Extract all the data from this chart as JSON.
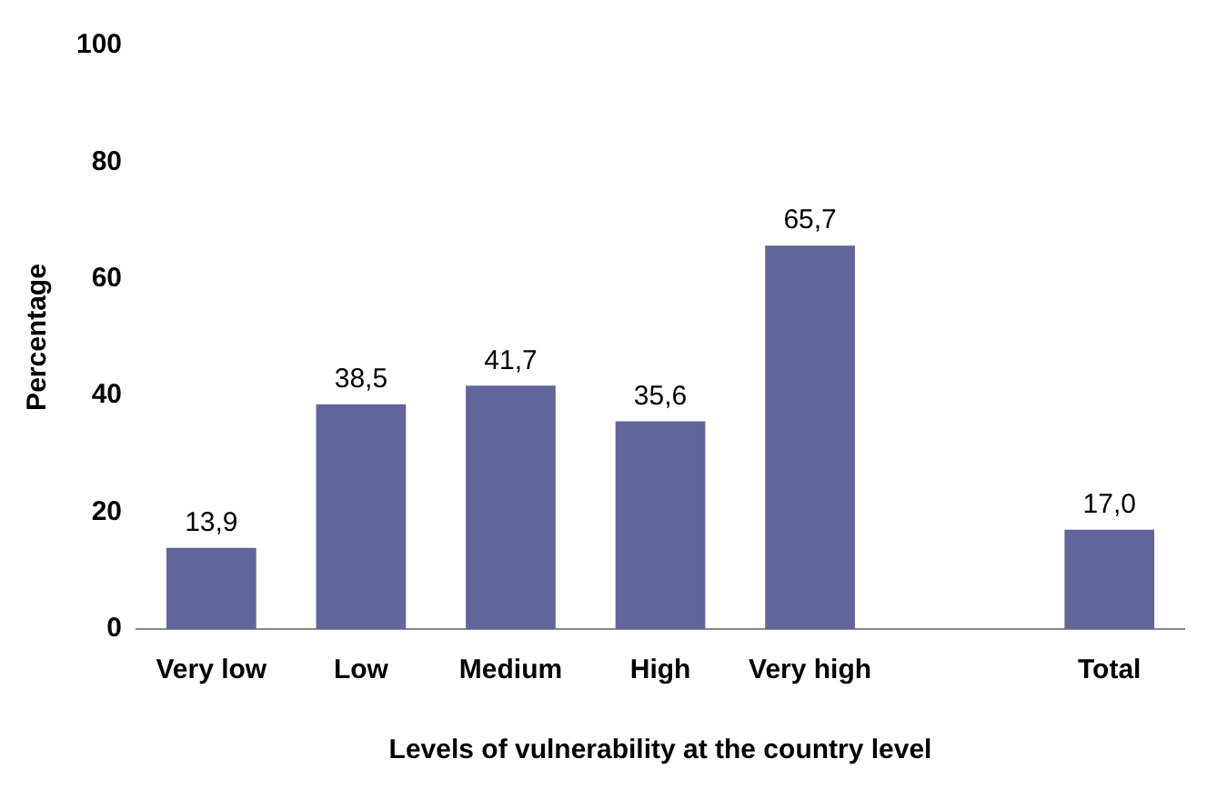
{
  "chart_data": {
    "type": "bar",
    "xlabel": "Levels of vulnerability at the country level",
    "ylabel": "Percentage",
    "categories": [
      "Very low",
      "Low",
      "Medium",
      "High",
      "Very high",
      null,
      "Total"
    ],
    "values": [
      13.9,
      38.5,
      41.7,
      35.6,
      65.7,
      null,
      17.0
    ],
    "value_labels": [
      "13,9",
      "38,5",
      "41,7",
      "35,6",
      "65,7",
      null,
      "17,0"
    ],
    "color": "#62659b",
    "ylim": [
      0,
      100
    ],
    "yticks": [
      0,
      20,
      40,
      60,
      80,
      100
    ],
    "grid": false,
    "legend": false
  }
}
